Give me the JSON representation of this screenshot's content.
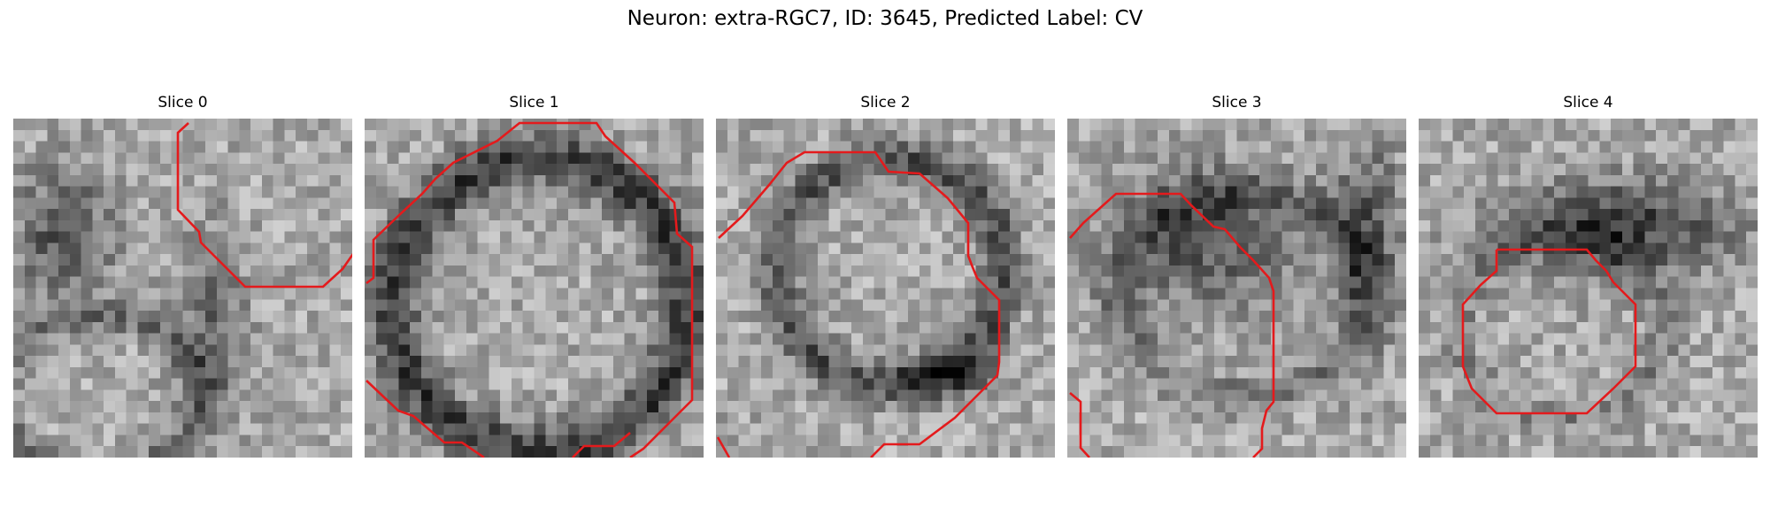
{
  "figure": {
    "suptitle": "Neuron: extra-RGC7, ID: 3645, Predicted Label: CV",
    "contour_color": "#e41a1c"
  },
  "panels": [
    {
      "title": "Slice 0"
    },
    {
      "title": "Slice 1"
    },
    {
      "title": "Slice 2"
    },
    {
      "title": "Slice 3"
    },
    {
      "title": "Slice 4"
    }
  ]
}
